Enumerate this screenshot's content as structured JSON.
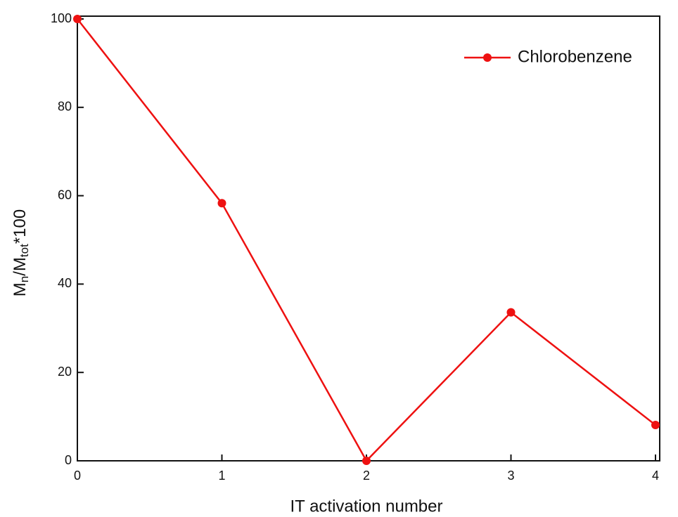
{
  "chart_data": {
    "type": "line",
    "x": [
      0,
      1,
      2,
      3,
      4
    ],
    "series": [
      {
        "name": "Chlorobenzene",
        "color": "#ee1111",
        "values": [
          100,
          58.3,
          0,
          33.6,
          8.1
        ]
      }
    ],
    "xlim": [
      0,
      4
    ],
    "xticks": [
      0,
      1,
      2,
      3,
      4
    ],
    "ylim": [
      0,
      100
    ],
    "yticks": [
      0,
      20,
      40,
      60,
      80,
      100
    ],
    "xlabel": "IT activation number",
    "ylabel_parts": [
      "M",
      "n",
      "/M",
      "tot",
      "*100"
    ],
    "legend": "top-right",
    "grid": false
  }
}
